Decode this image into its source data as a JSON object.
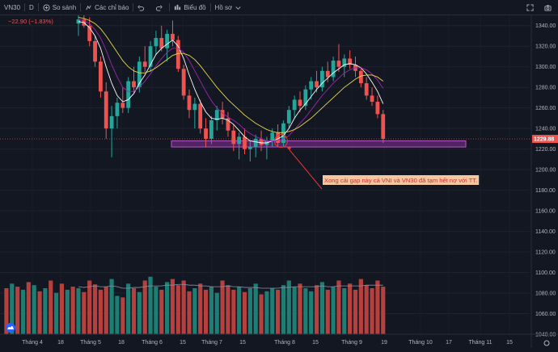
{
  "toolbar": {
    "symbol": "VN30",
    "interval": "D",
    "compare_label": "So sánh",
    "indicators_label": "Các chỉ báo",
    "chart_label": "Biểu đồ",
    "profile_label": "Hồ sơ"
  },
  "legend": {
    "change": "−22.90 (−1.83%)"
  },
  "annotation": {
    "text": "Xong cái gạp này cả VNI và VN30 đã tạm hết nợ với TT."
  },
  "colors": {
    "background": "#131722",
    "up": "#26a69a",
    "down": "#ef5350",
    "volume_up": "#1e7e74",
    "volume_down": "#b5403d",
    "zone_fill": "#6a2a7a",
    "zone_border": "#b05cc4",
    "annotation_bg": "#f4c7a1",
    "annotation_text": "#d32f2f",
    "arrow": "#e53935",
    "ma_fast": "#ffffff",
    "ma_mid": "#9c27b0",
    "ma_slow": "#e6d84a",
    "price_label_bg": "#ef5350"
  },
  "chart_data": {
    "type": "candlestick",
    "symbol": "VN30",
    "interval": "D",
    "last_price": 1229.88,
    "last_price_label": "1229.88",
    "change": -22.9,
    "change_percent": -1.83,
    "y_range": [
      1040,
      1350
    ],
    "y_ticks": [
      1340,
      1320,
      1300,
      1280,
      1260,
      1240,
      1220,
      1200,
      1180,
      1160,
      1140,
      1120,
      1100,
      1080,
      1060,
      1040
    ],
    "y_tick_labels": [
      "1340.00",
      "1320.00",
      "1300.00",
      "1280.00",
      "1260.00",
      "1240.00",
      "1220.00",
      "1200.00",
      "1180.00",
      "1160.00",
      "1140.00",
      "1120.00",
      "1100.00",
      "1080.00",
      "1060.00",
      "1040.00"
    ],
    "x_tick_labels": [
      "Tháng 4",
      "18",
      "Tháng 5",
      "18",
      "Tháng 6",
      "15",
      "Tháng 7",
      "15",
      "Tháng 8",
      "15",
      "Tháng 9",
      "19",
      "Tháng 10",
      "17",
      "Tháng 11",
      "15"
    ],
    "support_zone": [
      1222,
      1228
    ],
    "candles_start_index": 0,
    "candles": [
      {
        "o": 1342,
        "h": 1350,
        "l": 1330,
        "c": 1346
      },
      {
        "o": 1346,
        "h": 1352,
        "l": 1338,
        "c": 1340
      },
      {
        "o": 1340,
        "h": 1348,
        "l": 1320,
        "c": 1325
      },
      {
        "o": 1325,
        "h": 1330,
        "l": 1300,
        "c": 1305
      },
      {
        "o": 1305,
        "h": 1310,
        "l": 1270,
        "c": 1276
      },
      {
        "o": 1276,
        "h": 1285,
        "l": 1230,
        "c": 1240
      },
      {
        "o": 1240,
        "h": 1262,
        "l": 1212,
        "c": 1252
      },
      {
        "o": 1252,
        "h": 1270,
        "l": 1240,
        "c": 1265
      },
      {
        "o": 1265,
        "h": 1280,
        "l": 1255,
        "c": 1260
      },
      {
        "o": 1260,
        "h": 1290,
        "l": 1255,
        "c": 1286
      },
      {
        "o": 1286,
        "h": 1300,
        "l": 1275,
        "c": 1280
      },
      {
        "o": 1280,
        "h": 1310,
        "l": 1275,
        "c": 1305
      },
      {
        "o": 1305,
        "h": 1320,
        "l": 1295,
        "c": 1300
      },
      {
        "o": 1300,
        "h": 1325,
        "l": 1295,
        "c": 1320
      },
      {
        "o": 1320,
        "h": 1335,
        "l": 1312,
        "c": 1328
      },
      {
        "o": 1328,
        "h": 1340,
        "l": 1315,
        "c": 1318
      },
      {
        "o": 1318,
        "h": 1336,
        "l": 1305,
        "c": 1332
      },
      {
        "o": 1332,
        "h": 1345,
        "l": 1320,
        "c": 1326
      },
      {
        "o": 1326,
        "h": 1330,
        "l": 1295,
        "c": 1298
      },
      {
        "o": 1298,
        "h": 1302,
        "l": 1268,
        "c": 1272
      },
      {
        "o": 1272,
        "h": 1278,
        "l": 1250,
        "c": 1258
      },
      {
        "o": 1258,
        "h": 1270,
        "l": 1240,
        "c": 1264
      },
      {
        "o": 1264,
        "h": 1268,
        "l": 1235,
        "c": 1240
      },
      {
        "o": 1240,
        "h": 1250,
        "l": 1222,
        "c": 1230
      },
      {
        "o": 1230,
        "h": 1252,
        "l": 1225,
        "c": 1248
      },
      {
        "o": 1248,
        "h": 1262,
        "l": 1238,
        "c": 1258
      },
      {
        "o": 1258,
        "h": 1266,
        "l": 1244,
        "c": 1250
      },
      {
        "o": 1250,
        "h": 1256,
        "l": 1232,
        "c": 1238
      },
      {
        "o": 1238,
        "h": 1244,
        "l": 1218,
        "c": 1225
      },
      {
        "o": 1225,
        "h": 1236,
        "l": 1210,
        "c": 1232
      },
      {
        "o": 1232,
        "h": 1240,
        "l": 1215,
        "c": 1220
      },
      {
        "o": 1220,
        "h": 1228,
        "l": 1208,
        "c": 1222
      },
      {
        "o": 1222,
        "h": 1234,
        "l": 1212,
        "c": 1230
      },
      {
        "o": 1230,
        "h": 1238,
        "l": 1218,
        "c": 1224
      },
      {
        "o": 1224,
        "h": 1232,
        "l": 1210,
        "c": 1228
      },
      {
        "o": 1228,
        "h": 1240,
        "l": 1222,
        "c": 1236
      },
      {
        "o": 1236,
        "h": 1244,
        "l": 1222,
        "c": 1226
      },
      {
        "o": 1226,
        "h": 1248,
        "l": 1222,
        "c": 1245
      },
      {
        "o": 1245,
        "h": 1262,
        "l": 1240,
        "c": 1258
      },
      {
        "o": 1258,
        "h": 1272,
        "l": 1250,
        "c": 1268
      },
      {
        "o": 1268,
        "h": 1276,
        "l": 1256,
        "c": 1262
      },
      {
        "o": 1262,
        "h": 1282,
        "l": 1258,
        "c": 1278
      },
      {
        "o": 1278,
        "h": 1290,
        "l": 1268,
        "c": 1286
      },
      {
        "o": 1286,
        "h": 1296,
        "l": 1275,
        "c": 1280
      },
      {
        "o": 1280,
        "h": 1300,
        "l": 1276,
        "c": 1296
      },
      {
        "o": 1296,
        "h": 1305,
        "l": 1285,
        "c": 1290
      },
      {
        "o": 1290,
        "h": 1310,
        "l": 1286,
        "c": 1306
      },
      {
        "o": 1306,
        "h": 1322,
        "l": 1295,
        "c": 1300
      },
      {
        "o": 1300,
        "h": 1312,
        "l": 1290,
        "c": 1308
      },
      {
        "o": 1308,
        "h": 1316,
        "l": 1298,
        "c": 1302
      },
      {
        "o": 1302,
        "h": 1310,
        "l": 1290,
        "c": 1296
      },
      {
        "o": 1296,
        "h": 1300,
        "l": 1280,
        "c": 1284
      },
      {
        "o": 1284,
        "h": 1290,
        "l": 1268,
        "c": 1272
      },
      {
        "o": 1272,
        "h": 1280,
        "l": 1262,
        "c": 1266
      },
      {
        "o": 1266,
        "h": 1272,
        "l": 1250,
        "c": 1254
      },
      {
        "o": 1254,
        "h": 1258,
        "l": 1226,
        "c": 1230
      }
    ],
    "moving_averages": [
      {
        "color": "#ffffff",
        "values": [
          1344,
          1343,
          1338,
          1330,
          1318,
          1300,
          1284,
          1272,
          1266,
          1268,
          1274,
          1284,
          1292,
          1302,
          1312,
          1318,
          1322,
          1326,
          1320,
          1308,
          1292,
          1278,
          1266,
          1256,
          1250,
          1249,
          1250,
          1248,
          1244,
          1238,
          1232,
          1228,
          1227,
          1226,
          1226,
          1228,
          1230,
          1233,
          1240,
          1250,
          1258,
          1264,
          1271,
          1278,
          1284,
          1289,
          1294,
          1298,
          1302,
          1303,
          1302,
          1299,
          1293,
          1285,
          1276,
          1264
        ]
      },
      {
        "color": "#9c27b0",
        "values": [
          1346,
          1345,
          1342,
          1336,
          1328,
          1316,
          1302,
          1290,
          1280,
          1276,
          1276,
          1280,
          1286,
          1293,
          1301,
          1308,
          1314,
          1318,
          1318,
          1314,
          1306,
          1296,
          1286,
          1276,
          1267,
          1260,
          1255,
          1251,
          1248,
          1244,
          1239,
          1235,
          1232,
          1230,
          1228,
          1228,
          1229,
          1230,
          1233,
          1239,
          1245,
          1251,
          1258,
          1265,
          1272,
          1278,
          1284,
          1289,
          1294,
          1297,
          1299,
          1299,
          1297,
          1293,
          1287,
          1279
        ]
      },
      {
        "color": "#e6d84a",
        "values": [
          1348,
          1347,
          1345,
          1342,
          1337,
          1330,
          1322,
          1314,
          1306,
          1300,
          1296,
          1294,
          1294,
          1296,
          1299,
          1303,
          1307,
          1311,
          1313,
          1313,
          1311,
          1307,
          1301,
          1294,
          1287,
          1280,
          1274,
          1268,
          1263,
          1258,
          1253,
          1249,
          1245,
          1242,
          1239,
          1237,
          1236,
          1236,
          1237,
          1239,
          1242,
          1246,
          1250,
          1255,
          1260,
          1265,
          1270,
          1275,
          1280,
          1284,
          1288,
          1291,
          1292,
          1292,
          1290,
          1286
        ]
      }
    ],
    "volume": {
      "range": [
        0,
        100
      ],
      "values": [
        60,
        55,
        70,
        65,
        58,
        62,
        72,
        50,
        48,
        66,
        60,
        55,
        70,
        75,
        62,
        58,
        68,
        72,
        64,
        70,
        56,
        60,
        66,
        58,
        62,
        54,
        70,
        64,
        58,
        62,
        55,
        60,
        66,
        52,
        56,
        60,
        58,
        64,
        70,
        62,
        66,
        60,
        56,
        64,
        68,
        58,
        62,
        70,
        60,
        66,
        58,
        72,
        64,
        60,
        70,
        62
      ],
      "directions": [
        "up",
        "down",
        "down",
        "down",
        "down",
        "down",
        "up",
        "up",
        "down",
        "up",
        "down",
        "up",
        "down",
        "up",
        "up",
        "down",
        "up",
        "down",
        "down",
        "down",
        "down",
        "up",
        "down",
        "down",
        "up",
        "up",
        "down",
        "down",
        "down",
        "up",
        "down",
        "up",
        "up",
        "down",
        "up",
        "up",
        "down",
        "up",
        "up",
        "up",
        "down",
        "up",
        "up",
        "down",
        "up",
        "down",
        "up",
        "down",
        "up",
        "down",
        "down",
        "down",
        "down",
        "down",
        "down",
        "down"
      ],
      "ma_values": [
        62,
        61,
        62,
        63,
        62,
        62,
        63,
        62,
        60,
        60,
        61,
        61,
        62,
        63,
        63,
        63,
        64,
        64,
        65,
        65,
        64,
        64,
        63,
        63,
        62,
        62,
        62,
        63,
        62,
        62,
        61,
        61,
        61,
        60,
        60,
        60,
        60,
        61,
        61,
        62,
        62,
        62,
        62,
        62,
        63,
        62,
        62,
        63,
        63,
        63,
        63,
        63,
        64,
        64,
        64,
        64
      ]
    },
    "annotations": [
      {
        "type": "text",
        "text": "Xong cái gạp này cả VNI và VN30 đã tạm hết nợ với TT."
      },
      {
        "type": "circle",
        "candle_index": 37
      },
      {
        "type": "arrow",
        "from": "text",
        "to": "circle"
      }
    ]
  }
}
